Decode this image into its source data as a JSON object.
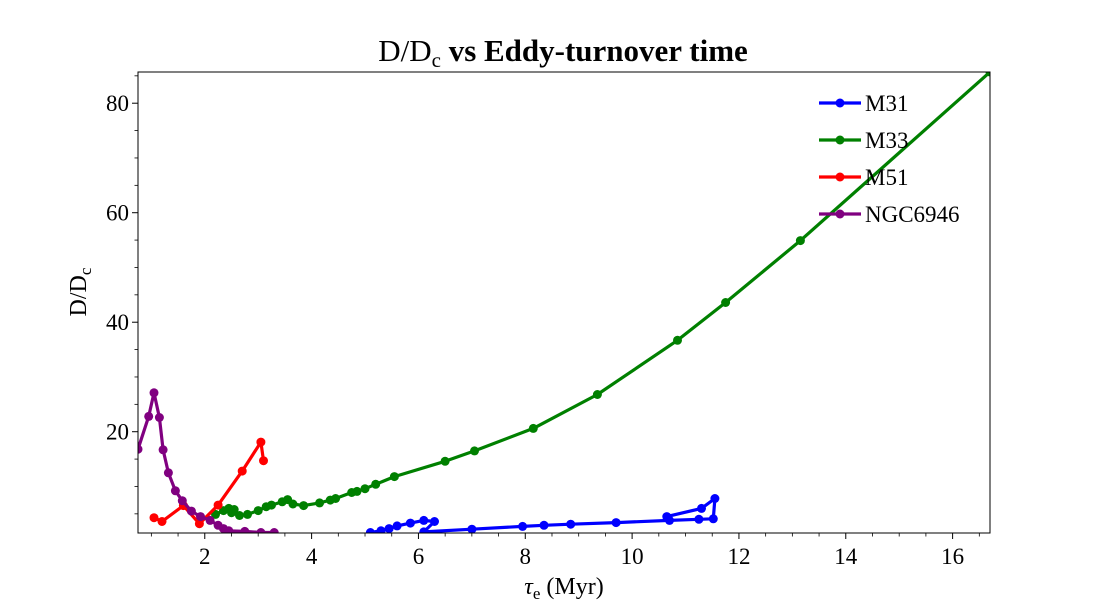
{
  "chart_data": {
    "type": "line",
    "title": {
      "base": "D/D",
      "sub": "c",
      "bold": " vs Eddy-turnover time"
    },
    "xlabel": {
      "symbol": "τ",
      "sub": "e",
      "rest": " (Myr)"
    },
    "ylabel": {
      "base": "D/D",
      "sub": "c"
    },
    "xlim": [
      0.75,
      16.7
    ],
    "ylim": [
      1.5,
      85.7
    ],
    "xticks": [
      2,
      4,
      6,
      8,
      10,
      12,
      14,
      16
    ],
    "yticks": [
      20,
      40,
      60,
      80
    ],
    "xminor_step": 0.5,
    "yminor_step": 5,
    "grid": false,
    "legend_position": "upper-right",
    "series": [
      {
        "name": "M31",
        "color": "#0000ff",
        "x": [
          5.1,
          5.3,
          5.45,
          5.6,
          5.85,
          6.1,
          6.3,
          6.1,
          7.0,
          7.95,
          8.35,
          8.85,
          9.7,
          10.7,
          11.25,
          11.52,
          11.55,
          11.3,
          10.65
        ],
        "y": [
          1.6,
          1.9,
          2.3,
          2.8,
          3.3,
          3.8,
          3.6,
          1.7,
          2.2,
          2.7,
          2.9,
          3.1,
          3.4,
          3.8,
          4.0,
          4.1,
          7.8,
          6.0,
          4.5
        ]
      },
      {
        "name": "M33",
        "color": "#008000",
        "x": [
          2.2,
          2.35,
          2.45,
          2.5,
          2.55,
          2.65,
          2.8,
          3.0,
          3.15,
          3.25,
          3.45,
          3.55,
          3.65,
          3.85,
          4.15,
          4.35,
          4.45,
          4.75,
          4.85,
          5.0,
          5.2,
          5.55,
          6.5,
          7.05,
          8.15,
          9.35,
          10.85,
          11.75,
          13.15,
          16.7
        ],
        "y": [
          4.9,
          5.6,
          6.0,
          5.2,
          5.8,
          4.7,
          4.9,
          5.6,
          6.3,
          6.6,
          7.2,
          7.6,
          6.8,
          6.5,
          7.0,
          7.5,
          7.8,
          8.9,
          9.1,
          9.6,
          10.4,
          11.8,
          14.6,
          16.5,
          20.6,
          26.8,
          36.7,
          43.6,
          54.9,
          85.7
        ]
      },
      {
        "name": "M51",
        "color": "#ff0000",
        "x": [
          1.05,
          1.2,
          1.6,
          1.9,
          2.25,
          2.7,
          3.05,
          3.1
        ],
        "y": [
          4.3,
          3.6,
          6.5,
          3.2,
          6.6,
          12.8,
          18.1,
          14.7
        ]
      },
      {
        "name": "NGC6946",
        "color": "#800080",
        "x": [
          0.75,
          0.95,
          1.05,
          1.15,
          1.22,
          1.32,
          1.45,
          1.58,
          1.75,
          1.92,
          2.1,
          2.25,
          2.35,
          2.45,
          2.75,
          3.05,
          3.3
        ],
        "y": [
          16.8,
          22.8,
          27.1,
          22.6,
          16.7,
          12.5,
          9.2,
          7.4,
          5.5,
          4.5,
          3.8,
          2.9,
          2.3,
          1.9,
          1.8,
          1.6,
          1.6
        ]
      }
    ]
  }
}
